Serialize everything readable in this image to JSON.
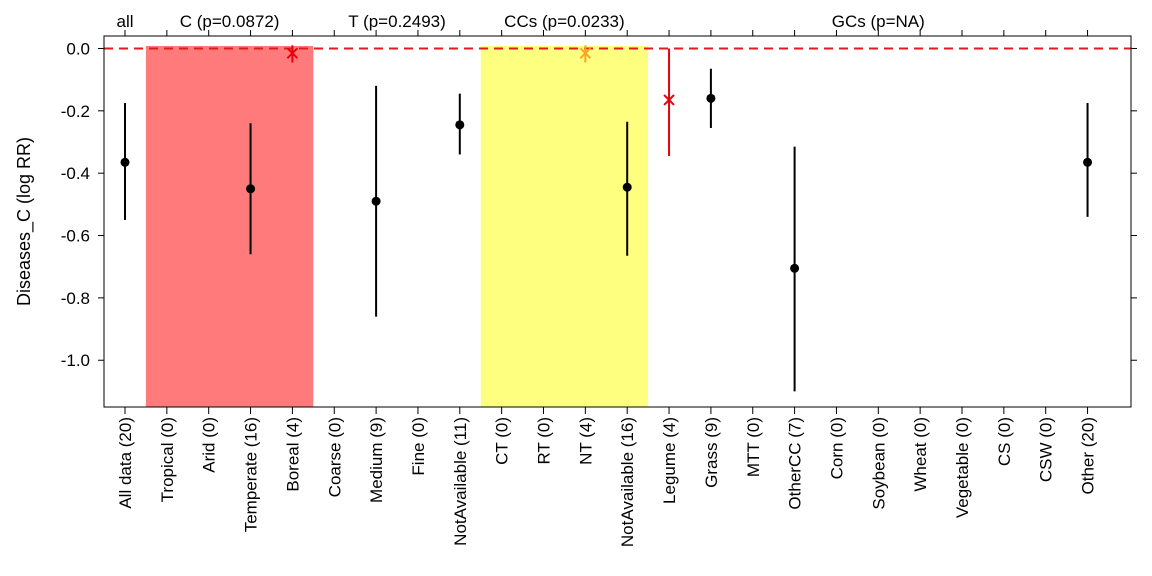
{
  "chart_data": {
    "type": "scatter",
    "ylabel": "Diseases_C (log RR)",
    "ylim": [
      -1.15,
      0.04
    ],
    "yticks": [
      0.0,
      -0.2,
      -0.4,
      -0.6,
      -0.8,
      -1.0
    ],
    "ytick_labels": [
      "0.0",
      "-0.2",
      "-0.4",
      "-0.6",
      "-0.8",
      "-1.0"
    ],
    "reference_line": {
      "y": 0.0,
      "style": "dashed",
      "color": "#e31a1c"
    },
    "categories": [
      "All data (20)",
      "Tropical (0)",
      "Arid (0)",
      "Temperate (16)",
      "Boreal (4)",
      "Coarse (0)",
      "Medium (9)",
      "Fine (0)",
      "NotAvailable (11)",
      "CT (0)",
      "RT (0)",
      "NT (4)",
      "NotAvailable (16)",
      "Legume (4)",
      "Grass (9)",
      "MTT (0)",
      "OtherCC (7)",
      "Corn (0)",
      "Soybean (0)",
      "Wheat (0)",
      "Vegetable (0)",
      "CS (0)",
      "CSW (0)",
      "Other (20)"
    ],
    "groups": [
      {
        "label": "all",
        "start": 0,
        "end": 0
      },
      {
        "label": "C (p=0.0872)",
        "start": 1,
        "end": 4
      },
      {
        "label": "T (p=0.2493)",
        "start": 5,
        "end": 8
      },
      {
        "label": "CCs (p=0.0233)",
        "start": 9,
        "end": 12
      },
      {
        "label": "GCs (p=NA)",
        "start": 13,
        "end": 23
      }
    ],
    "highlights": [
      {
        "start": 1,
        "end": 4,
        "color": "#ff7b7b"
      },
      {
        "start": 9,
        "end": 12,
        "color": "#ffff7f"
      }
    ],
    "points": [
      {
        "index": 0,
        "value": -0.365,
        "lower": -0.55,
        "upper": -0.175,
        "marker": "dot",
        "color": "#000000"
      },
      {
        "index": 3,
        "value": -0.45,
        "lower": -0.66,
        "upper": -0.24,
        "marker": "dot",
        "color": "#000000"
      },
      {
        "index": 4,
        "value": -0.015,
        "lower": -0.045,
        "upper": 0.01,
        "marker": "cross",
        "color": "#e8000b"
      },
      {
        "index": 6,
        "value": -0.49,
        "lower": -0.86,
        "upper": -0.12,
        "marker": "dot",
        "color": "#000000"
      },
      {
        "index": 8,
        "value": -0.245,
        "lower": -0.34,
        "upper": -0.145,
        "marker": "dot",
        "color": "#000000"
      },
      {
        "index": 11,
        "value": -0.015,
        "lower": -0.045,
        "upper": 0.01,
        "marker": "cross",
        "color": "#f5a623"
      },
      {
        "index": 12,
        "value": -0.445,
        "lower": -0.665,
        "upper": -0.235,
        "marker": "dot",
        "color": "#000000"
      },
      {
        "index": 13,
        "value": -0.165,
        "lower": -0.345,
        "upper": 0.0,
        "marker": "cross",
        "color": "#e8000b"
      },
      {
        "index": 14,
        "value": -0.16,
        "lower": -0.255,
        "upper": -0.065,
        "marker": "dot",
        "color": "#000000"
      },
      {
        "index": 16,
        "value": -0.705,
        "lower": -1.1,
        "upper": -0.315,
        "marker": "dot",
        "color": "#000000"
      },
      {
        "index": 23,
        "value": -0.365,
        "lower": -0.54,
        "upper": -0.175,
        "marker": "dot",
        "color": "#000000"
      }
    ]
  }
}
